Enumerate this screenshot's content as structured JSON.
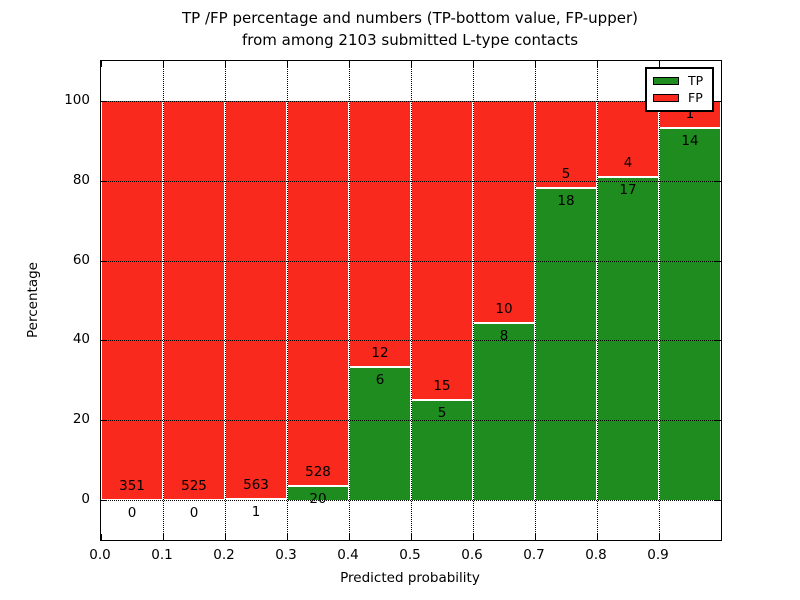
{
  "title": {
    "line1": "TP /FP percentage and numbers (TP-bottom value, FP-upper)",
    "line2": "from among 2103 submitted L-type contacts"
  },
  "axes": {
    "xlabel": "Predicted probability",
    "ylabel": "Percentage",
    "x_tick_labels": [
      "0.0",
      "0.1",
      "0.2",
      "0.3",
      "0.4",
      "0.5",
      "0.6",
      "0.7",
      "0.8",
      "0.9"
    ],
    "y_tick_labels": [
      "0",
      "20",
      "40",
      "60",
      "80",
      "100"
    ]
  },
  "legend": {
    "items": [
      {
        "label": "TP",
        "color": "#1f8c1f"
      },
      {
        "label": "FP",
        "color": "#f92a1d"
      }
    ]
  },
  "colors": {
    "tp_green": "#1f8c1f",
    "fp_red": "#f92a1d",
    "grid": "#000000",
    "bar_edge": "#ffffff",
    "background": "#ffffff"
  },
  "chart_data": {
    "type": "bar",
    "stacked": true,
    "normalized_to_percent": true,
    "title": "TP /FP percentage and numbers (TP-bottom value, FP-upper) from among 2103 submitted L-type contacts",
    "xlabel": "Predicted probability",
    "ylabel": "Percentage",
    "xlim": [
      0.0,
      1.0
    ],
    "ylim": [
      -10,
      110
    ],
    "grid": true,
    "legend_position": "upper right",
    "bin_width": 0.1,
    "bin_starts": [
      0.0,
      0.1,
      0.2,
      0.3,
      0.4,
      0.5,
      0.6,
      0.7,
      0.8,
      0.9
    ],
    "series": [
      {
        "name": "TP",
        "color": "#1f8c1f",
        "counts": [
          0,
          0,
          1,
          20,
          6,
          5,
          8,
          18,
          17,
          14
        ]
      },
      {
        "name": "FP",
        "color": "#f92a1d",
        "counts": [
          351,
          525,
          563,
          528,
          12,
          15,
          10,
          5,
          4,
          1
        ]
      }
    ],
    "tp_percent_heights": [
      0.0,
      0.0,
      0.18,
      3.65,
      33.33,
      25.0,
      44.44,
      78.26,
      80.95,
      93.33
    ],
    "total_contacts": 2103
  }
}
